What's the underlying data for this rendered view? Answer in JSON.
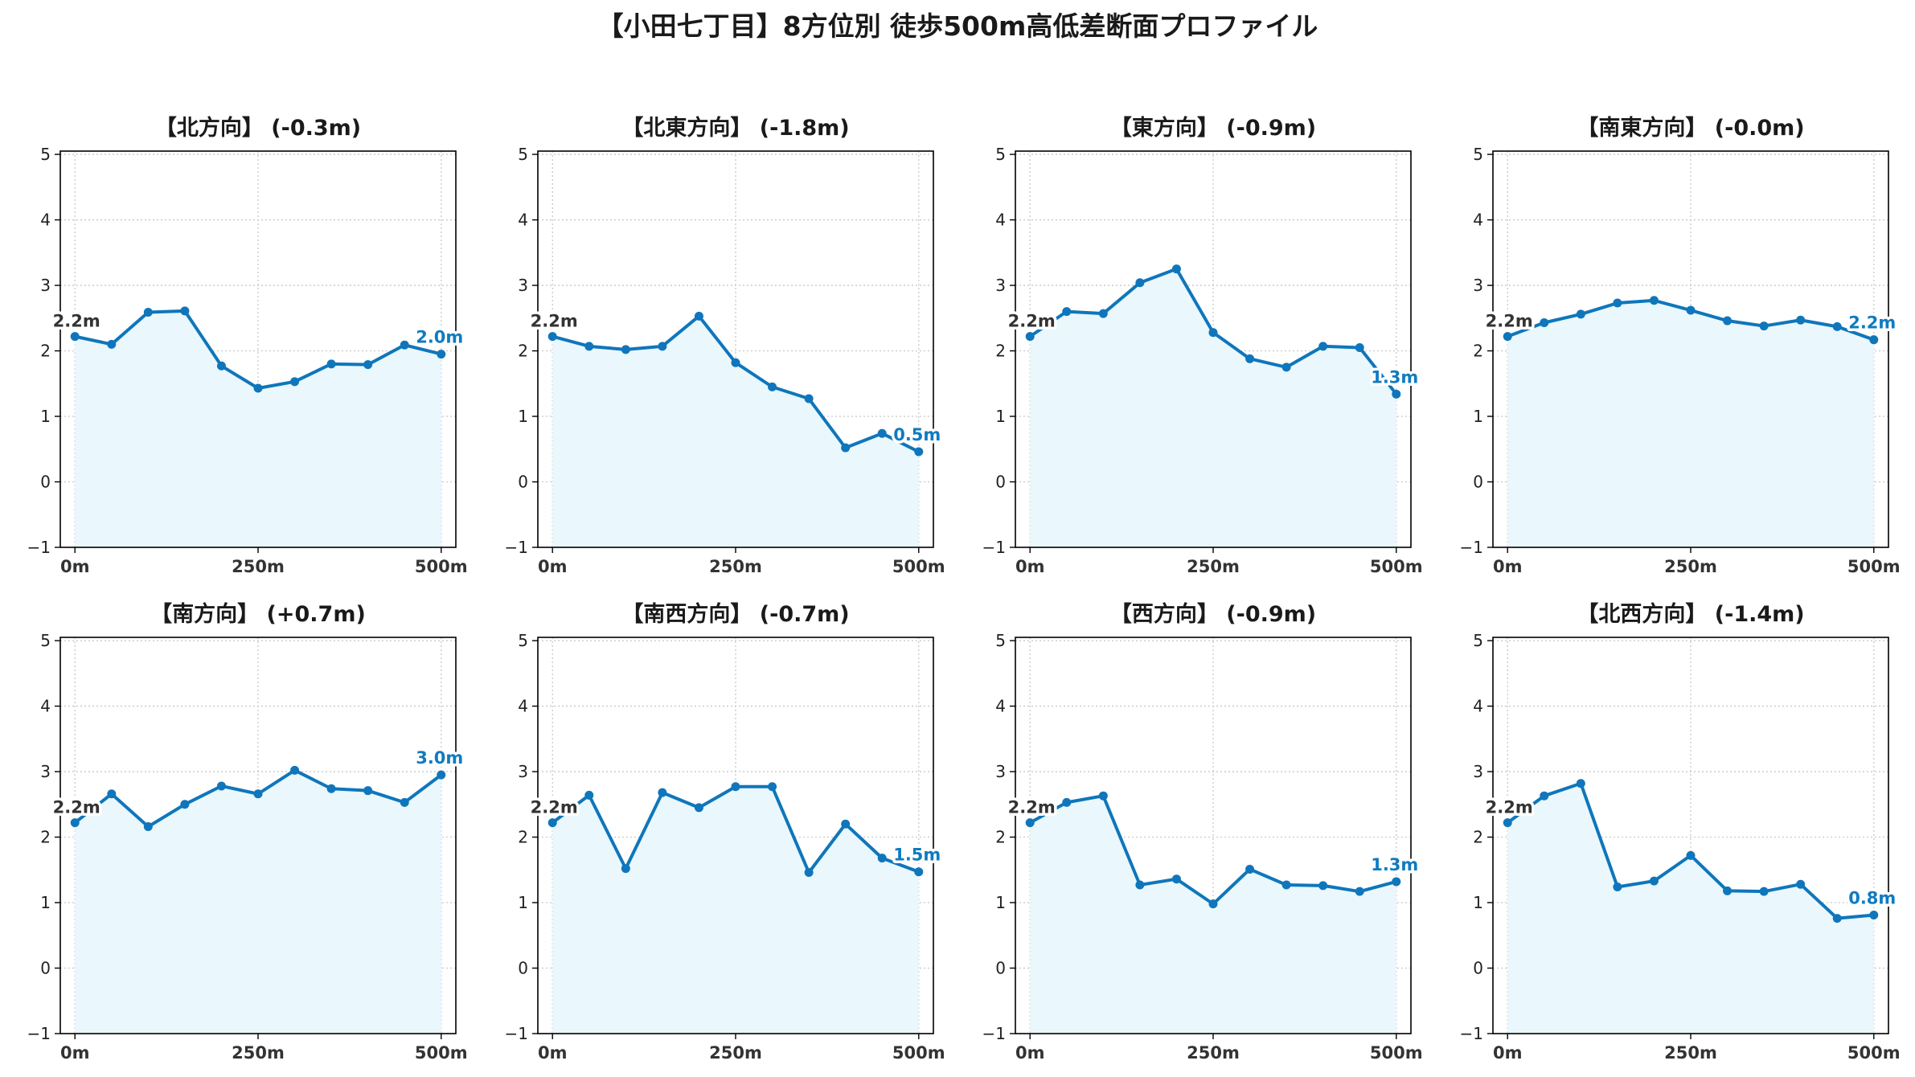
{
  "title": "【小田七丁目】8方位別 徒歩500m高低差断面プロファイル",
  "colors": {
    "line": "#0f76bb",
    "fill": "#eaf7fc",
    "grid": "#c8c8c8",
    "start_label": "#333333",
    "end_label": "#0f7bc0"
  },
  "chart_data": [
    {
      "type": "area",
      "title": "【北方向】 (-0.3m)",
      "x": [
        0,
        50,
        100,
        150,
        200,
        250,
        300,
        350,
        400,
        450,
        500
      ],
      "y": [
        2.22,
        2.1,
        2.59,
        2.61,
        1.77,
        1.43,
        1.53,
        1.8,
        1.79,
        2.09,
        1.95
      ],
      "xticks": [
        0,
        250,
        500
      ],
      "xtick_labels": [
        "0m",
        "250m",
        "500m"
      ],
      "yticks": [
        -1,
        0,
        1,
        2,
        3,
        4,
        5
      ],
      "ytick_labels": [
        "−1",
        "0",
        "1",
        "2",
        "3",
        "4",
        "5"
      ],
      "xlim": [
        -20,
        520
      ],
      "ylim": [
        -1,
        5.05
      ],
      "grid": true,
      "start_label": "2.2m",
      "end_label": "2.0m"
    },
    {
      "type": "area",
      "title": "【北東方向】 (-1.8m)",
      "x": [
        0,
        50,
        100,
        150,
        200,
        250,
        300,
        350,
        400,
        450,
        500
      ],
      "y": [
        2.22,
        2.07,
        2.02,
        2.07,
        2.53,
        1.82,
        1.45,
        1.27,
        0.52,
        0.74,
        0.46
      ],
      "xticks": [
        0,
        250,
        500
      ],
      "xtick_labels": [
        "0m",
        "250m",
        "500m"
      ],
      "yticks": [
        -1,
        0,
        1,
        2,
        3,
        4,
        5
      ],
      "ytick_labels": [
        "−1",
        "0",
        "1",
        "2",
        "3",
        "4",
        "5"
      ],
      "xlim": [
        -20,
        520
      ],
      "ylim": [
        -1,
        5.05
      ],
      "grid": true,
      "start_label": "2.2m",
      "end_label": "0.5m"
    },
    {
      "type": "area",
      "title": "【東方向】 (-0.9m)",
      "x": [
        0,
        50,
        100,
        150,
        200,
        250,
        300,
        350,
        400,
        450,
        500
      ],
      "y": [
        2.22,
        2.6,
        2.57,
        3.04,
        3.25,
        2.28,
        1.88,
        1.75,
        2.07,
        2.05,
        1.34
      ],
      "xticks": [
        0,
        250,
        500
      ],
      "xtick_labels": [
        "0m",
        "250m",
        "500m"
      ],
      "yticks": [
        -1,
        0,
        1,
        2,
        3,
        4,
        5
      ],
      "ytick_labels": [
        "−1",
        "0",
        "1",
        "2",
        "3",
        "4",
        "5"
      ],
      "xlim": [
        -20,
        520
      ],
      "ylim": [
        -1,
        5.05
      ],
      "grid": true,
      "start_label": "2.2m",
      "end_label": "1.3m"
    },
    {
      "type": "area",
      "title": "【南東方向】 (-0.0m)",
      "x": [
        0,
        50,
        100,
        150,
        200,
        250,
        300,
        350,
        400,
        450,
        500
      ],
      "y": [
        2.22,
        2.43,
        2.56,
        2.73,
        2.77,
        2.62,
        2.46,
        2.38,
        2.47,
        2.37,
        2.17
      ],
      "xticks": [
        0,
        250,
        500
      ],
      "xtick_labels": [
        "0m",
        "250m",
        "500m"
      ],
      "yticks": [
        -1,
        0,
        1,
        2,
        3,
        4,
        5
      ],
      "ytick_labels": [
        "−1",
        "0",
        "1",
        "2",
        "3",
        "4",
        "5"
      ],
      "xlim": [
        -20,
        520
      ],
      "ylim": [
        -1,
        5.05
      ],
      "grid": true,
      "start_label": "2.2m",
      "end_label": "2.2m"
    },
    {
      "type": "area",
      "title": "【南方向】 (+0.7m)",
      "x": [
        0,
        50,
        100,
        150,
        200,
        250,
        300,
        350,
        400,
        450,
        500
      ],
      "y": [
        2.22,
        2.66,
        2.16,
        2.5,
        2.78,
        2.66,
        3.02,
        2.74,
        2.71,
        2.53,
        2.95
      ],
      "xticks": [
        0,
        250,
        500
      ],
      "xtick_labels": [
        "0m",
        "250m",
        "500m"
      ],
      "yticks": [
        -1,
        0,
        1,
        2,
        3,
        4,
        5
      ],
      "ytick_labels": [
        "−1",
        "0",
        "1",
        "2",
        "3",
        "4",
        "5"
      ],
      "xlim": [
        -20,
        520
      ],
      "ylim": [
        -1,
        5.05
      ],
      "grid": true,
      "start_label": "2.2m",
      "end_label": "3.0m"
    },
    {
      "type": "area",
      "title": "【南西方向】 (-0.7m)",
      "x": [
        0,
        50,
        100,
        150,
        200,
        250,
        300,
        350,
        400,
        450,
        500
      ],
      "y": [
        2.22,
        2.64,
        1.52,
        2.68,
        2.45,
        2.77,
        2.77,
        1.46,
        2.2,
        1.68,
        1.47
      ],
      "xticks": [
        0,
        250,
        500
      ],
      "xtick_labels": [
        "0m",
        "250m",
        "500m"
      ],
      "yticks": [
        -1,
        0,
        1,
        2,
        3,
        4,
        5
      ],
      "ytick_labels": [
        "−1",
        "0",
        "1",
        "2",
        "3",
        "4",
        "5"
      ],
      "xlim": [
        -20,
        520
      ],
      "ylim": [
        -1,
        5.05
      ],
      "grid": true,
      "start_label": "2.2m",
      "end_label": "1.5m"
    },
    {
      "type": "area",
      "title": "【西方向】 (-0.9m)",
      "x": [
        0,
        50,
        100,
        150,
        200,
        250,
        300,
        350,
        400,
        450,
        500
      ],
      "y": [
        2.22,
        2.53,
        2.63,
        1.27,
        1.36,
        0.98,
        1.51,
        1.27,
        1.26,
        1.17,
        1.32
      ],
      "xticks": [
        0,
        250,
        500
      ],
      "xtick_labels": [
        "0m",
        "250m",
        "500m"
      ],
      "yticks": [
        -1,
        0,
        1,
        2,
        3,
        4,
        5
      ],
      "ytick_labels": [
        "−1",
        "0",
        "1",
        "2",
        "3",
        "4",
        "5"
      ],
      "xlim": [
        -20,
        520
      ],
      "ylim": [
        -1,
        5.05
      ],
      "grid": true,
      "start_label": "2.2m",
      "end_label": "1.3m"
    },
    {
      "type": "area",
      "title": "【北西方向】 (-1.4m)",
      "x": [
        0,
        50,
        100,
        150,
        200,
        250,
        300,
        350,
        400,
        450,
        500
      ],
      "y": [
        2.22,
        2.63,
        2.82,
        1.24,
        1.33,
        1.72,
        1.18,
        1.17,
        1.28,
        0.76,
        0.81
      ],
      "xticks": [
        0,
        250,
        500
      ],
      "xtick_labels": [
        "0m",
        "250m",
        "500m"
      ],
      "yticks": [
        -1,
        0,
        1,
        2,
        3,
        4,
        5
      ],
      "ytick_labels": [
        "−1",
        "0",
        "1",
        "2",
        "3",
        "4",
        "5"
      ],
      "xlim": [
        -20,
        520
      ],
      "ylim": [
        -1,
        5.05
      ],
      "grid": true,
      "start_label": "2.2m",
      "end_label": "0.8m"
    }
  ]
}
